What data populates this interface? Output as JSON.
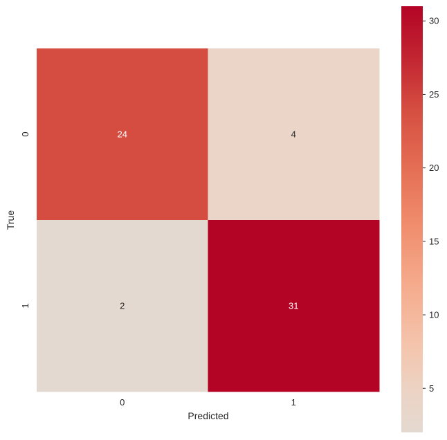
{
  "chart_data": {
    "type": "heatmap",
    "title": "",
    "xlabel": "Predicted",
    "ylabel": "True",
    "x_categories": [
      "0",
      "1"
    ],
    "y_categories": [
      "0",
      "1"
    ],
    "values": [
      [
        24,
        4
      ],
      [
        2,
        31
      ]
    ],
    "colormap": "coolwarm (upper half, light beige to dark red)",
    "value_range": [
      2,
      31
    ],
    "colorbar": {
      "placement": "right",
      "ticks": [
        5,
        10,
        15,
        20,
        25,
        30
      ],
      "tick_labels": [
        "5",
        "10",
        "15",
        "20",
        "25",
        "30"
      ]
    },
    "grid": false,
    "annotations": "cell values printed at cell centers"
  }
}
